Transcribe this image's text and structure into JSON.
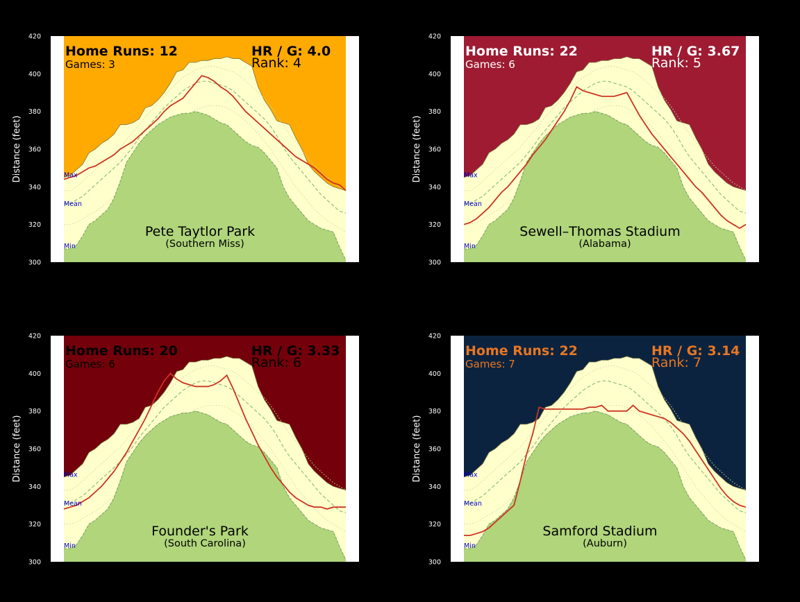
{
  "figure": {
    "background": "#000000"
  },
  "field_profile": {
    "angles": [
      0,
      2,
      4,
      6,
      8,
      10,
      12,
      14,
      16,
      18,
      20,
      22,
      24,
      26,
      28,
      30,
      32,
      34,
      36,
      38,
      40,
      42,
      44,
      46,
      48,
      50,
      52,
      54,
      56,
      58,
      60,
      62,
      64,
      66,
      68,
      70,
      72,
      74,
      76,
      78,
      80,
      82,
      84,
      86,
      88,
      90
    ],
    "min": [
      307,
      307,
      309,
      314,
      320,
      322,
      325,
      328,
      334,
      343,
      353,
      358,
      363,
      367,
      370,
      373,
      375,
      377,
      378,
      379,
      379,
      380,
      379,
      378,
      376,
      374,
      373,
      370,
      367,
      364,
      362,
      361,
      358,
      354,
      350,
      340,
      334,
      330,
      326,
      322,
      320,
      318,
      317,
      316,
      308,
      301
    ],
    "max": [
      345,
      346,
      349,
      352,
      358,
      360,
      363,
      365,
      368,
      373,
      373,
      374,
      376,
      382,
      383,
      386,
      390,
      395,
      401,
      402,
      406,
      406,
      407,
      407,
      408,
      408,
      409,
      408,
      408,
      406,
      404,
      393,
      386,
      381,
      375,
      374,
      373,
      366,
      360,
      352,
      348,
      345,
      342,
      340,
      339,
      338
    ],
    "mean": [
      331,
      331,
      333,
      335,
      338,
      341,
      344,
      347,
      350,
      353,
      357,
      361,
      366,
      370,
      374,
      378,
      382,
      385,
      388,
      391,
      393,
      395,
      396,
      396,
      395,
      394,
      393,
      391,
      388,
      385,
      382,
      379,
      376,
      372,
      367,
      361,
      356,
      352,
      348,
      344,
      340,
      336,
      333,
      330,
      327,
      326
    ],
    "dotted_low": [
      320,
      320,
      321,
      323,
      325,
      327,
      329,
      332,
      335,
      339,
      343,
      347,
      352,
      356,
      360,
      364,
      368,
      371,
      374,
      377,
      379,
      381,
      382,
      383,
      383,
      383,
      382,
      380,
      378,
      375,
      372,
      368,
      364,
      360,
      355,
      350,
      345,
      340,
      336,
      332,
      328,
      325,
      322,
      320,
      318,
      316
    ],
    "dotted_high": [
      338,
      338,
      340,
      343,
      346,
      349,
      352,
      355,
      358,
      361,
      365,
      369,
      373,
      377,
      381,
      384,
      388,
      392,
      395,
      398,
      400,
      402,
      403,
      404,
      404,
      403,
      402,
      401,
      399,
      396,
      393,
      390,
      387,
      383,
      378,
      373,
      368,
      364,
      359,
      355,
      351,
      348,
      345,
      342,
      340,
      338
    ]
  },
  "colors": {
    "field_fill": "#b0d57b",
    "field_edge": "#6fa35d",
    "band_fill": "#ffffcc",
    "mean_line": "#8fbf75",
    "dotted_line": "#d2d89a",
    "park_line": "#cc3322",
    "marker_text": "#0000cc"
  },
  "chart_data": [
    {
      "type": "area",
      "ylabel": "Distance (feet)",
      "ylim": [
        300,
        420
      ],
      "yticks": [
        "300",
        "320",
        "340",
        "360",
        "380",
        "400",
        "420"
      ],
      "band_labels": {
        "max": "Max",
        "mean": "Mean",
        "min": "Min"
      },
      "park": "Pete Taytlor Park",
      "team": "(Southern Miss)",
      "hr_text": "Home Runs: 12",
      "games_text": "Games: 3",
      "hrg_text": "HR / G: 4.0",
      "rank_text": "Rank: 4",
      "bg_color": "#ffaa00",
      "text_color": "#000000",
      "fence": [
        344,
        345,
        346,
        348,
        350,
        351,
        353,
        355,
        357,
        360,
        362,
        364,
        367,
        370,
        373,
        376,
        380,
        383,
        385,
        387,
        391,
        395,
        399,
        398,
        396,
        393,
        391,
        388,
        384,
        380,
        377,
        374,
        371,
        368,
        365,
        362,
        359,
        356,
        354,
        352,
        350,
        347,
        344,
        342,
        341,
        338
      ]
    },
    {
      "type": "area",
      "ylabel": "Distance (feet)",
      "ylim": [
        300,
        420
      ],
      "yticks": [
        "300",
        "320",
        "340",
        "360",
        "380",
        "400",
        "420"
      ],
      "band_labels": {
        "max": "Max",
        "mean": "Mean",
        "min": "Min"
      },
      "park": "Sewell–Thomas Stadium",
      "team": "(Alabama)",
      "hr_text": "Home Runs: 22",
      "games_text": "Games: 6",
      "hrg_text": "HR / G: 3.67",
      "rank_text": "Rank: 5",
      "bg_color": "#9e1b32",
      "text_color": "#ffffff",
      "fence": [
        320,
        321,
        323,
        326,
        329,
        333,
        337,
        340,
        344,
        348,
        352,
        357,
        361,
        365,
        370,
        375,
        380,
        386,
        393,
        391,
        390,
        389,
        388,
        388,
        388,
        389,
        390,
        384,
        378,
        373,
        368,
        364,
        360,
        356,
        352,
        348,
        344,
        340,
        337,
        333,
        329,
        325,
        322,
        320,
        318,
        320
      ]
    },
    {
      "type": "area",
      "ylabel": "Distance (feet)",
      "ylim": [
        300,
        420
      ],
      "yticks": [
        "300",
        "320",
        "340",
        "360",
        "380",
        "400",
        "420"
      ],
      "band_labels": {
        "max": "Max",
        "mean": "Mean",
        "min": "Min"
      },
      "park": "Founder's Park",
      "team": "(South Carolina)",
      "hr_text": "Home Runs: 20",
      "games_text": "Games: 6",
      "hrg_text": "HR / G: 3.33",
      "rank_text": "Rank: 6",
      "bg_color": "#73000a",
      "text_color": "#000000",
      "fence": [
        328,
        329,
        330,
        332,
        334,
        337,
        340,
        344,
        348,
        353,
        358,
        364,
        370,
        376,
        383,
        390,
        396,
        400,
        397,
        395,
        394,
        393,
        393,
        393,
        394,
        396,
        399,
        392,
        384,
        376,
        369,
        362,
        356,
        350,
        345,
        341,
        337,
        334,
        332,
        330,
        329,
        329,
        328,
        329,
        329,
        329
      ]
    },
    {
      "type": "area",
      "ylabel": "Distance (feet)",
      "ylim": [
        300,
        420
      ],
      "yticks": [
        "300",
        "320",
        "340",
        "360",
        "380",
        "400",
        "420"
      ],
      "band_labels": {
        "max": "Max",
        "mean": "Mean",
        "min": "Min"
      },
      "park": "Samford Stadium",
      "team": "(Auburn)",
      "hr_text": "Home Runs: 22",
      "games_text": "Games: 7",
      "hrg_text": "HR / G: 3.14",
      "rank_text": "Rank: 7",
      "bg_color": "#0c2340",
      "text_color": "#e87722",
      "fence": [
        314,
        314,
        315,
        316,
        318,
        321,
        324,
        327,
        330,
        343,
        357,
        368,
        382,
        381,
        381,
        381,
        381,
        381,
        381,
        381,
        382,
        382,
        383,
        380,
        380,
        380,
        380,
        383,
        380,
        379,
        378,
        377,
        376,
        374,
        371,
        368,
        364,
        359,
        354,
        349,
        344,
        339,
        335,
        332,
        330,
        329
      ]
    }
  ]
}
